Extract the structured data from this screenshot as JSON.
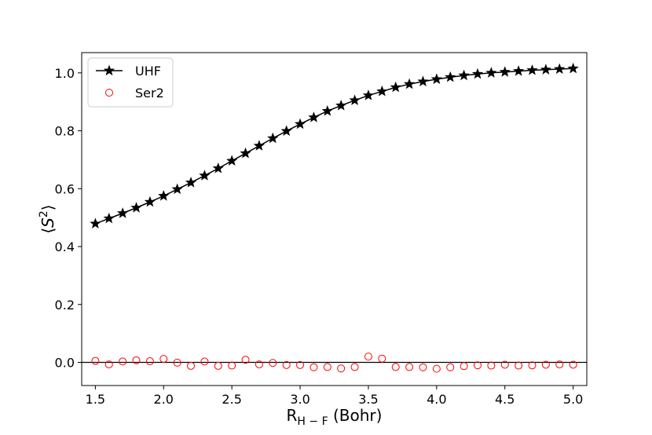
{
  "chart_data": {
    "type": "line",
    "title": "",
    "xlabel": {
      "base": "R",
      "sub": "H − F",
      "suffix": " (Bohr)"
    },
    "ylabel": {
      "left": "⟨",
      "base": "S",
      "sup": "2",
      "right": "⟩"
    },
    "xlim": [
      1.4,
      5.1
    ],
    "ylim": [
      -0.08,
      1.07
    ],
    "xticks": [
      1.5,
      2.0,
      2.5,
      3.0,
      3.5,
      4.0,
      4.5,
      5.0
    ],
    "xtick_labels": [
      "1.5",
      "2.0",
      "2.5",
      "3.0",
      "3.5",
      "4.0",
      "4.5",
      "5.0"
    ],
    "yticks": [
      0.0,
      0.2,
      0.4,
      0.6,
      0.8,
      1.0
    ],
    "ytick_labels": [
      "0.0",
      "0.2",
      "0.4",
      "0.6",
      "0.8",
      "1.0"
    ],
    "grid": false,
    "hline": 0.0,
    "legend_position": "top-left",
    "x": [
      1.5,
      1.6,
      1.7,
      1.8,
      1.9,
      2.0,
      2.1,
      2.2,
      2.3,
      2.4,
      2.5,
      2.6,
      2.7,
      2.8,
      2.9,
      3.0,
      3.1,
      3.2,
      3.3,
      3.4,
      3.5,
      3.6,
      3.7,
      3.8,
      3.9,
      4.0,
      4.1,
      4.2,
      4.3,
      4.4,
      4.5,
      4.6,
      4.7,
      4.8,
      4.9,
      5.0
    ],
    "series": [
      {
        "name": "UHF",
        "color": "#000000",
        "marker": "star",
        "line": true,
        "values": [
          0.479,
          0.497,
          0.515,
          0.534,
          0.554,
          0.575,
          0.598,
          0.621,
          0.645,
          0.67,
          0.696,
          0.722,
          0.748,
          0.774,
          0.799,
          0.823,
          0.846,
          0.868,
          0.887,
          0.905,
          0.922,
          0.936,
          0.95,
          0.961,
          0.97,
          0.978,
          0.985,
          0.991,
          0.996,
          1.0,
          1.003,
          1.006,
          1.009,
          1.011,
          1.013,
          1.015
        ]
      },
      {
        "name": "Ser2",
        "color": "#ff0000",
        "marker": "circle-open",
        "line": false,
        "values": [
          0.005,
          -0.007,
          0.003,
          0.007,
          0.004,
          0.012,
          -0.001,
          -0.012,
          0.003,
          -0.012,
          -0.011,
          0.009,
          -0.007,
          -0.002,
          -0.009,
          -0.009,
          -0.017,
          -0.016,
          -0.021,
          -0.016,
          0.02,
          0.013,
          -0.016,
          -0.016,
          -0.017,
          -0.022,
          -0.017,
          -0.013,
          -0.01,
          -0.011,
          -0.008,
          -0.011,
          -0.01,
          -0.008,
          -0.007,
          -0.008
        ]
      }
    ]
  }
}
